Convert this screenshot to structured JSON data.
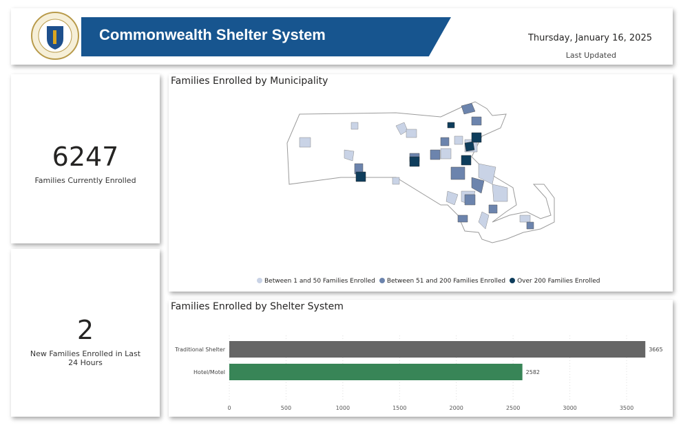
{
  "header": {
    "title": "Commonwealth Shelter System",
    "date": "Thursday, January 16, 2025",
    "last_updated_label": "Last Updated",
    "seal_text": "SIGILLUM REIPUBLICAE MASSACHUSETTENSIS",
    "banner_color": "#17558f"
  },
  "kpis": [
    {
      "value": "6247",
      "label": "Families Currently Enrolled"
    },
    {
      "value": "2",
      "label": "New Families Enrolled in Last 24 Hours"
    }
  ],
  "map": {
    "title": "Families Enrolled by Municipality",
    "legend": [
      {
        "label": "Between 1 and 50 Families Enrolled",
        "color": "#c9d3e6"
      },
      {
        "label": "Between 51 and 200 Families Enrolled",
        "color": "#6c84ad"
      },
      {
        "label": "Over 200 Families Enrolled",
        "color": "#0e3d5c"
      }
    ]
  },
  "chart_data": {
    "type": "bar",
    "orientation": "horizontal",
    "title": "Families Enrolled by Shelter System",
    "categories": [
      "Traditional Shelter",
      "Hotel/Motel"
    ],
    "values": [
      3665,
      2582
    ],
    "colors": [
      "#666666",
      "#388557"
    ],
    "xlim": [
      0,
      3700
    ],
    "xticks": [
      0,
      500,
      1000,
      1500,
      2000,
      2500,
      3000,
      3500
    ],
    "grid": true,
    "data_labels": true
  }
}
